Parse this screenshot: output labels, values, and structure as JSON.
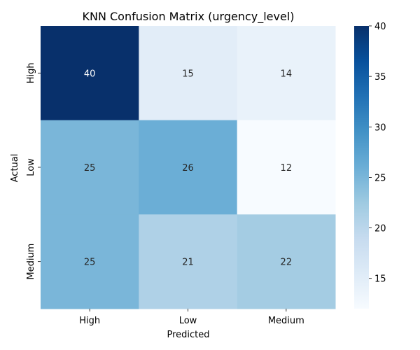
{
  "chart_data": {
    "type": "heatmap",
    "title": "KNN Confusion Matrix (urgency_level)",
    "xlabel": "Predicted",
    "ylabel": "Actual",
    "x_categories": [
      "High",
      "Low",
      "Medium"
    ],
    "y_categories": [
      "High",
      "Low",
      "Medium"
    ],
    "values": [
      [
        40,
        15,
        14
      ],
      [
        25,
        26,
        12
      ],
      [
        25,
        21,
        22
      ]
    ],
    "colorbar": {
      "range": [
        12,
        40
      ],
      "ticks": [
        15,
        20,
        25,
        30,
        35,
        40
      ]
    },
    "colormap": "Blues",
    "colors": {
      "low": "#f7fbff",
      "high": "#08306b",
      "annot_light": "#ffffff",
      "annot_dark": "#262626"
    }
  }
}
